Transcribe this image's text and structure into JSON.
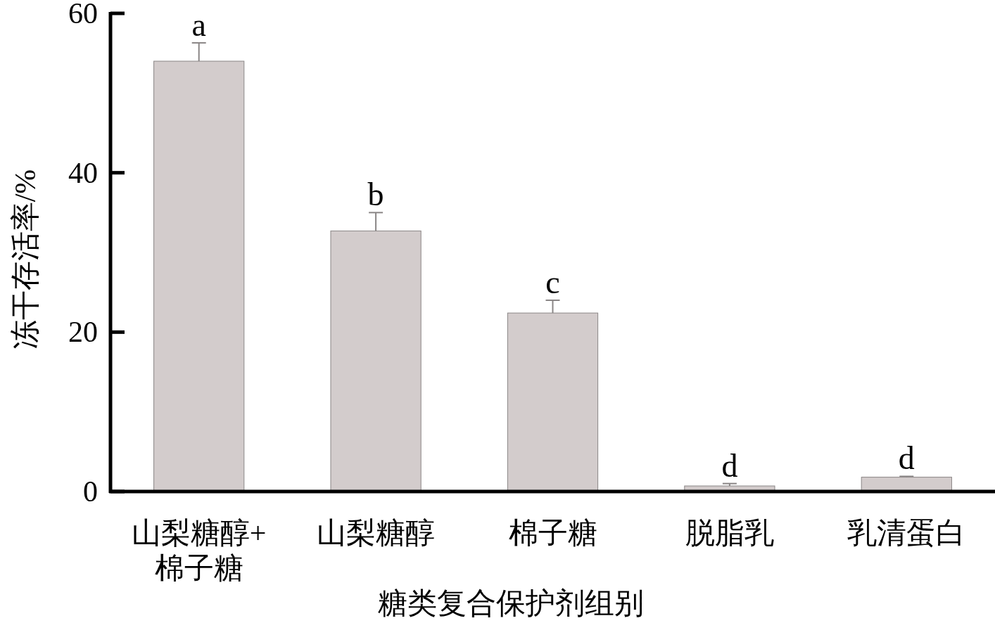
{
  "chart_data": {
    "type": "bar",
    "xlabel": "糖类复合保护剂组别",
    "ylabel": "冻干存活率/%",
    "categories": [
      "山梨糖醇+棉子糖",
      "山梨糖醇",
      "棉子糖",
      "脱脂乳",
      "乳清蛋白"
    ],
    "values": [
      54.0,
      32.7,
      22.4,
      0.7,
      1.8
    ],
    "errors": [
      [
        54.0,
        56.3
      ],
      [
        32.7,
        35.0
      ],
      [
        22.4,
        24.0
      ],
      [
        0.7,
        1.0
      ],
      [
        1.8,
        1.9
      ]
    ],
    "color": "#d3cccc",
    "ylim": [
      0,
      60
    ],
    "yticks": [
      0,
      20,
      40,
      60
    ],
    "annotations": [
      {
        "text": "a",
        "x": "山梨糖醇+棉子糖",
        "y": 56.3
      },
      {
        "text": "b",
        "x": "山梨糖醇",
        "y": 35.0
      },
      {
        "text": "c",
        "x": "棉子糖",
        "y": 24.0
      },
      {
        "text": "d",
        "x": "脱脂乳",
        "y": 1.0
      },
      {
        "text": "d",
        "x": "乳清蛋白",
        "y": 1.9
      }
    ]
  }
}
